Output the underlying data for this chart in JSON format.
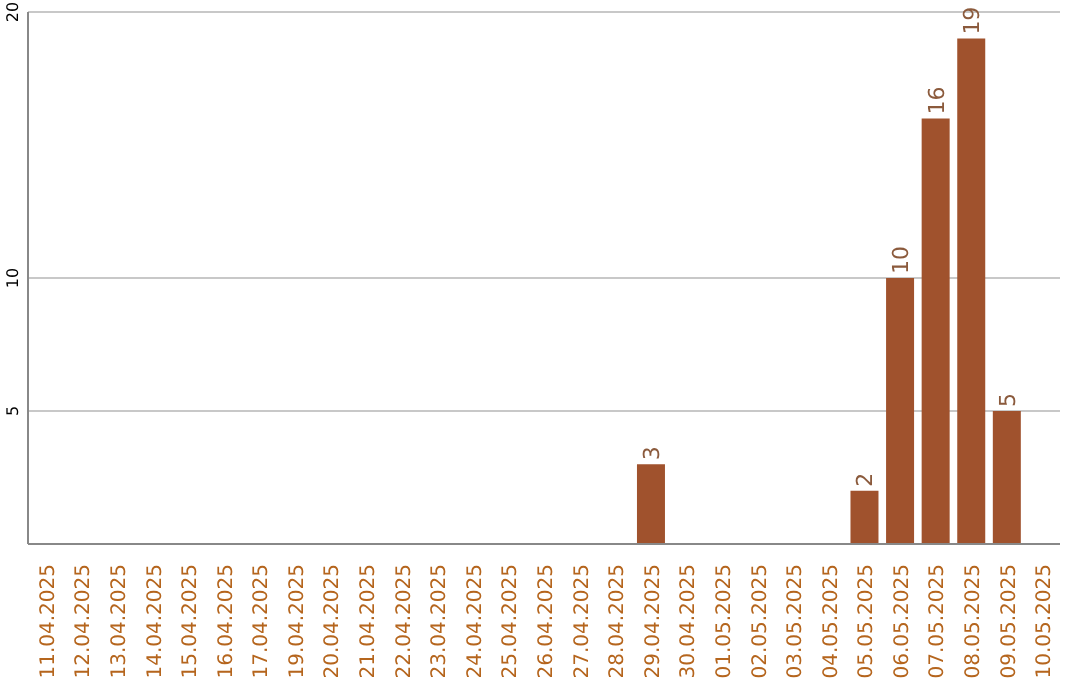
{
  "chart_data": {
    "type": "bar",
    "categories": [
      "11.04.2025",
      "12.04.2025",
      "13.04.2025",
      "14.04.2025",
      "15.04.2025",
      "16.04.2025",
      "17.04.2025",
      "19.04.2025",
      "20.04.2025",
      "21.04.2025",
      "22.04.2025",
      "23.04.2025",
      "24.04.2025",
      "25.04.2025",
      "26.04.2025",
      "27.04.2025",
      "28.04.2025",
      "29.04.2025",
      "30.04.2025",
      "01.05.2025",
      "02.05.2025",
      "03.05.2025",
      "04.05.2025",
      "05.05.2025",
      "06.05.2025",
      "07.05.2025",
      "08.05.2025",
      "09.05.2025",
      "10.05.2025"
    ],
    "values": [
      0,
      0,
      0,
      0,
      0,
      0,
      0,
      0,
      0,
      0,
      0,
      0,
      0,
      0,
      0,
      0,
      0,
      3,
      0,
      0,
      0,
      0,
      0,
      2,
      10,
      16,
      19,
      5,
      0
    ],
    "value_labels": [
      null,
      null,
      null,
      null,
      null,
      null,
      null,
      null,
      null,
      null,
      null,
      null,
      null,
      null,
      null,
      null,
      null,
      "3",
      null,
      null,
      null,
      null,
      null,
      "2",
      "10",
      "16",
      "19",
      "5",
      null
    ],
    "color": "#a0522d",
    "ylim": [
      0,
      20
    ],
    "yticks": [
      5,
      10,
      20
    ],
    "grid": "y"
  }
}
